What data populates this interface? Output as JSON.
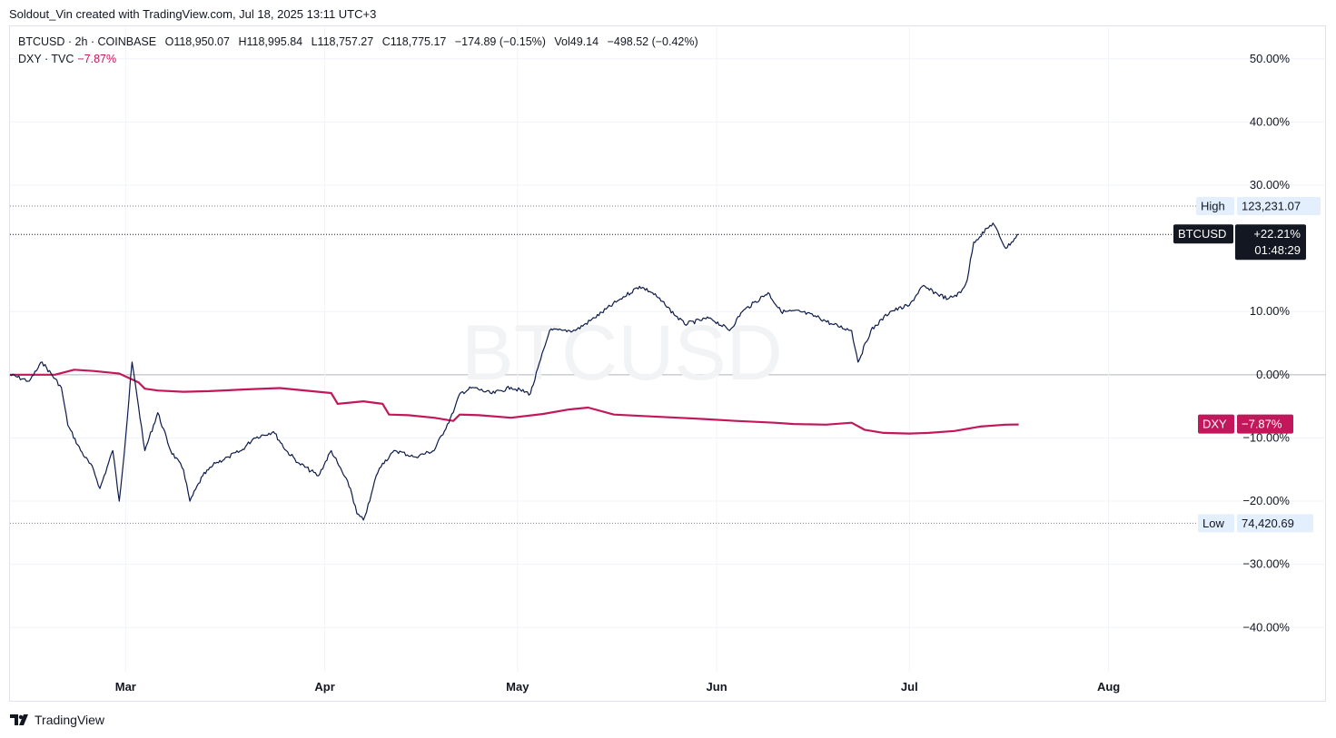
{
  "credit": "Soldout_Vin created with TradingView.com, Jul 18, 2025 13:11 UTC+3",
  "legend": {
    "main": {
      "symbol": "BTCUSD · 2h · COINBASE",
      "open": "O118,950.07",
      "high": "H118,995.84",
      "low": "L118,757.27",
      "close": "C118,775.17",
      "change": "−174.89 (−0.15%)",
      "volume": "Vol49.14",
      "volume_change": "−498.52 (−0.42%)"
    },
    "compare": {
      "symbol": "DXY · TVC",
      "value": "−7.87%"
    }
  },
  "watermark": "BTCUSD",
  "brand": "TradingView",
  "colors": {
    "btc": "#0d1b4a",
    "dxy": "#c2185b",
    "grid": "#f0f3fa",
    "high_low_bg": "#e3effd"
  },
  "chart_data": {
    "type": "line",
    "scale": "percent",
    "ylim": [
      -47,
      55
    ],
    "yticks": [
      "50.00%",
      "40.00%",
      "30.00%",
      "10.00%",
      "0.00%",
      "−10.00%",
      "−20.00%",
      "−30.00%",
      "−40.00%"
    ],
    "ytick_values": [
      50,
      40,
      30,
      10,
      0,
      -10,
      -20,
      -30,
      -40
    ],
    "xlim": [
      "2025-02-11",
      "2025-08-20"
    ],
    "xticks": [
      {
        "label": "Mar",
        "date": "2025-03-01"
      },
      {
        "label": "Apr",
        "date": "2025-04-01"
      },
      {
        "label": "May",
        "date": "2025-05-01"
      },
      {
        "label": "Jun",
        "date": "2025-06-01"
      },
      {
        "label": "Jul",
        "date": "2025-07-01"
      },
      {
        "label": "Aug",
        "date": "2025-08-01"
      }
    ],
    "series": [
      {
        "name": "BTCUSD",
        "x": [
          "2025-02-11",
          "2025-02-14",
          "2025-02-16",
          "2025-02-19",
          "2025-02-20",
          "2025-02-22",
          "2025-02-24",
          "2025-02-25",
          "2025-02-27",
          "2025-02-28",
          "2025-03-01",
          "2025-03-02",
          "2025-03-03",
          "2025-03-04",
          "2025-03-06",
          "2025-03-08",
          "2025-03-10",
          "2025-03-11",
          "2025-03-13",
          "2025-03-15",
          "2025-03-17",
          "2025-03-19",
          "2025-03-21",
          "2025-03-24",
          "2025-03-26",
          "2025-03-28",
          "2025-03-31",
          "2025-04-02",
          "2025-04-03",
          "2025-04-05",
          "2025-04-06",
          "2025-04-07",
          "2025-04-08",
          "2025-04-09",
          "2025-04-10",
          "2025-04-12",
          "2025-04-15",
          "2025-04-18",
          "2025-04-21",
          "2025-04-22",
          "2025-04-24",
          "2025-04-27",
          "2025-04-30",
          "2025-05-03",
          "2025-05-06",
          "2025-05-08",
          "2025-05-10",
          "2025-05-13",
          "2025-05-17",
          "2025-05-20",
          "2025-05-22",
          "2025-05-24",
          "2025-05-27",
          "2025-05-31",
          "2025-06-03",
          "2025-06-05",
          "2025-06-09",
          "2025-06-11",
          "2025-06-14",
          "2025-06-17",
          "2025-06-19",
          "2025-06-22",
          "2025-06-23",
          "2025-06-25",
          "2025-06-28",
          "2025-07-01",
          "2025-07-03",
          "2025-07-07",
          "2025-07-09",
          "2025-07-10",
          "2025-07-11",
          "2025-07-14",
          "2025-07-15",
          "2025-07-16",
          "2025-07-18"
        ],
        "y": [
          0,
          -1,
          2,
          -2,
          -8,
          -12,
          -15,
          -18,
          -12,
          -20,
          -10,
          2,
          -5,
          -12,
          -6,
          -12,
          -15,
          -20,
          -16,
          -14,
          -13,
          -12,
          -10,
          -9,
          -12,
          -14,
          -16,
          -12,
          -14,
          -18,
          -22,
          -23,
          -20,
          -16,
          -14,
          -12,
          -13,
          -12,
          -6,
          -3,
          -2,
          -3,
          -2,
          -3,
          7,
          7,
          7,
          9,
          12,
          14,
          13,
          11,
          8,
          9,
          7,
          10,
          13,
          10,
          10,
          9,
          8,
          7,
          2,
          7,
          10,
          11,
          14,
          12,
          13,
          15,
          21,
          24,
          22,
          20,
          22.21
        ]
      },
      {
        "name": "DXY",
        "x": [
          "2025-02-11",
          "2025-02-14",
          "2025-02-18",
          "2025-02-21",
          "2025-02-24",
          "2025-02-28",
          "2025-03-03",
          "2025-03-04",
          "2025-03-06",
          "2025-03-10",
          "2025-03-14",
          "2025-03-20",
          "2025-03-25",
          "2025-03-27",
          "2025-04-02",
          "2025-04-03",
          "2025-04-07",
          "2025-04-10",
          "2025-04-11",
          "2025-04-14",
          "2025-04-18",
          "2025-04-21",
          "2025-04-22",
          "2025-04-25",
          "2025-04-30",
          "2025-05-05",
          "2025-05-09",
          "2025-05-12",
          "2025-05-16",
          "2025-05-22",
          "2025-05-26",
          "2025-05-30",
          "2025-06-04",
          "2025-06-10",
          "2025-06-13",
          "2025-06-18",
          "2025-06-22",
          "2025-06-24",
          "2025-06-27",
          "2025-07-01",
          "2025-07-04",
          "2025-07-08",
          "2025-07-12",
          "2025-07-16",
          "2025-07-18"
        ],
        "y": [
          0,
          0,
          0,
          0.8,
          0.6,
          0.2,
          -1.2,
          -2.2,
          -2.5,
          -2.7,
          -2.6,
          -2.3,
          -2.1,
          -2.3,
          -2.9,
          -4.6,
          -4.2,
          -4.6,
          -6.3,
          -6.4,
          -6.8,
          -7.3,
          -6.3,
          -6.4,
          -6.8,
          -6.2,
          -5.5,
          -5.2,
          -6.3,
          -6.6,
          -6.8,
          -7.0,
          -7.3,
          -7.6,
          -7.8,
          -7.9,
          -7.6,
          -8.7,
          -9.2,
          -9.3,
          -9.2,
          -8.9,
          -8.2,
          -7.9,
          -7.87
        ]
      }
    ],
    "high": {
      "label": "High",
      "value": "123,231.07",
      "pct": 26.7
    },
    "low": {
      "label": "Low",
      "value": "74,420.69",
      "pct": -23.5
    },
    "last": {
      "btc": {
        "name": "BTCUSD",
        "value": "+22.21%",
        "countdown": "01:48:29",
        "pct": 22.21
      },
      "dxy": {
        "name": "DXY",
        "value": "−7.87%",
        "pct": -7.87
      }
    }
  }
}
